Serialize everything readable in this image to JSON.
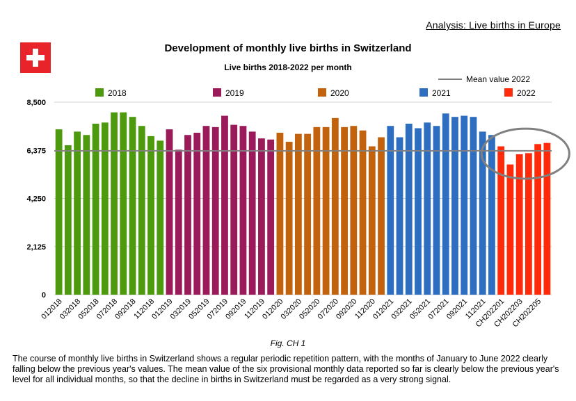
{
  "header": {
    "analysis_link": "Analysis: Live births in Europe"
  },
  "flag": {
    "background": "#e8242a",
    "cross": "#ffffff"
  },
  "chart_data": {
    "type": "bar",
    "title": "Development of monthly live births in Switzerland",
    "subtitle": "Live births 2018-2022 per month",
    "ylim": [
      0,
      8500
    ],
    "yticks": [
      "0",
      "2,125",
      "4,250",
      "6,375",
      "8,500"
    ],
    "ytick_values": [
      0,
      2125,
      4250,
      6375,
      8500
    ],
    "grid": true,
    "legend_placement": "top",
    "legend": [
      {
        "name": "2018",
        "color": "#4e9a0e"
      },
      {
        "name": "2019",
        "color": "#9a1a5a"
      },
      {
        "name": "2020",
        "color": "#c2620c"
      },
      {
        "name": "2021",
        "color": "#2e6ec0"
      },
      {
        "name": "2022",
        "color": "#ff2a0a"
      }
    ],
    "mean_line": {
      "label": "Mean value 2022",
      "value": 6350,
      "color": "#808080"
    },
    "series": [
      {
        "name": "2018",
        "color": "#4e9a0e",
        "values": [
          7300,
          6600,
          7200,
          7050,
          7550,
          7600,
          8050,
          8050,
          7850,
          7450,
          7000,
          6800
        ]
      },
      {
        "name": "2019",
        "color": "#9a1a5a",
        "values": [
          7300,
          6400,
          7050,
          7150,
          7450,
          7400,
          7900,
          7500,
          7450,
          7200,
          6900,
          6850
        ]
      },
      {
        "name": "2020",
        "color": "#c2620c",
        "values": [
          7150,
          6750,
          7100,
          7100,
          7400,
          7400,
          7800,
          7400,
          7450,
          7250,
          6550,
          6950
        ]
      },
      {
        "name": "2021",
        "color": "#2e6ec0",
        "values": [
          7450,
          6950,
          7550,
          7350,
          7600,
          7450,
          8000,
          7850,
          7900,
          7850,
          7200,
          7050
        ]
      },
      {
        "name": "2022",
        "color": "#ff2a0a",
        "values": [
          6550,
          5750,
          6200,
          6250,
          6650,
          6700
        ]
      }
    ],
    "x_tick_labels": [
      "012018",
      "032018",
      "052018",
      "072018",
      "092018",
      "112018",
      "012019",
      "032019",
      "052019",
      "072019",
      "092019",
      "112019",
      "012020",
      "032020",
      "052020",
      "072020",
      "092020",
      "112020",
      "012021",
      "032021",
      "052021",
      "072021",
      "092021",
      "112021",
      "CH202201",
      "CH202203",
      "CH202205"
    ]
  },
  "figure_caption": "Fig. CH 1",
  "description": "The course of monthly live births in Switzerland shows a regular periodic repetition pattern, with the months of January to June 2022 clearly falling below the previous year's values. The mean value of the six provisional monthly data reported so far is clearly below the previous year's level for all individual months, so that the decline in births in Switzerland must be regarded as a very strong signal."
}
